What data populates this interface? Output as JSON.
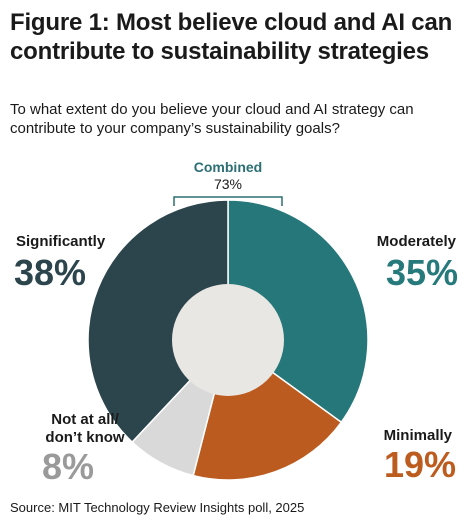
{
  "colors": {
    "moderately": "#26777a",
    "minimally": "#bb5b1f",
    "not_at_all": "#d9d9d9",
    "significantly": "#2c454d",
    "center": "#e9e7e3",
    "bracket": "#2b6e74"
  },
  "chart_data": {
    "type": "pie",
    "title": "Figure 1: Most believe cloud and AI can contribute to sustainability strategies",
    "subtitle": "To what extent do you believe your cloud and AI strategy can contribute to your company’s sustainability goals?",
    "slices": [
      {
        "label": "Moderately",
        "value": 35,
        "value_label": "35%"
      },
      {
        "label": "Minimally",
        "value": 19,
        "value_label": "19%"
      },
      {
        "label": "Not at all/ don’t know",
        "label_lines": [
          "Not at all/",
          "don’t know"
        ],
        "value": 8,
        "value_label": "8%"
      },
      {
        "label": "Significantly",
        "value": 38,
        "value_label": "38%"
      }
    ],
    "annotation": {
      "label": "Combined",
      "value_label": "73%",
      "spans": [
        "Significantly",
        "Moderately"
      ]
    },
    "donut": true,
    "source": "Source: MIT Technology Review Insights poll, 2025"
  }
}
